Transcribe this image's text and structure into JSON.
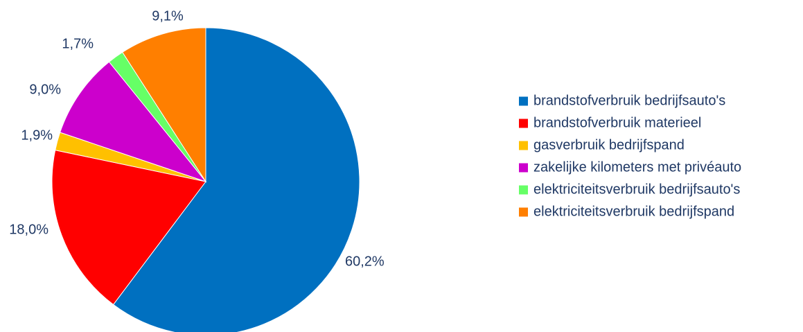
{
  "chart_data": {
    "type": "pie",
    "title": "",
    "legend_position": "right",
    "slices": [
      {
        "label": "brandstofverbruik bedrijfsauto's",
        "value": 60.2,
        "display": "60,2%",
        "color": "#0070c0"
      },
      {
        "label": "brandstofverbruik materieel",
        "value": 18.0,
        "display": "18,0%",
        "color": "#ff0000"
      },
      {
        "label": "gasverbruik bedrijfspand",
        "value": 1.9,
        "display": "1,9%",
        "color": "#ffc000"
      },
      {
        "label": "zakelijke kilometers met privéauto",
        "value": 9.0,
        "display": "9,0%",
        "color": "#cc00cc"
      },
      {
        "label": "elektriciteitsverbruik bedrijfsauto's",
        "value": 1.7,
        "display": "1,7%",
        "color": "#66ff66"
      },
      {
        "label": "elektriciteitsverbruik bedrijfspand",
        "value": 9.1,
        "display": "9,1%",
        "color": "#ff7f00"
      }
    ]
  }
}
